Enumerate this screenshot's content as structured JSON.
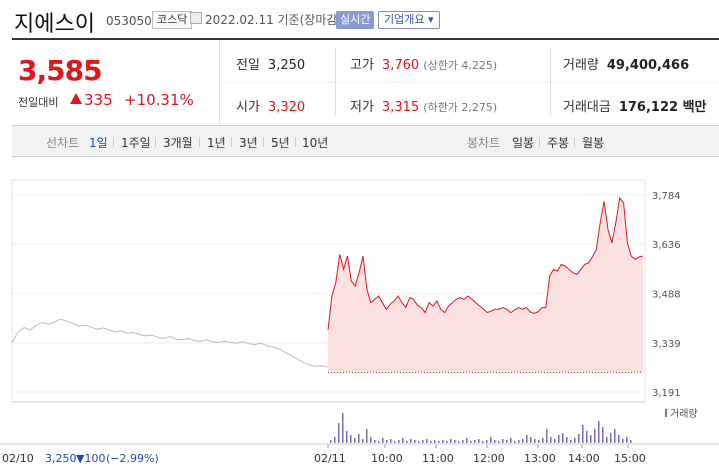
{
  "stock": {
    "name": "지에스이",
    "code": "053050",
    "market": "코스닥",
    "date": "2022.02.11",
    "basis": "기준(장마감)",
    "realtime_label": "실시간",
    "overview_label": "기업개요 ▾",
    "price": "3,585",
    "change_label": "전일대비",
    "change": "335",
    "change_pct": "+10.31%"
  },
  "stats": {
    "prev_label": "전일",
    "prev": "3,250",
    "open_label": "시가",
    "open": "3,320",
    "high_label": "고가",
    "high": "3,760",
    "upper_limit": "(상한가 4,225)",
    "low_label": "저가",
    "low": "3,315",
    "lower_limit": "(하한가 2,275)",
    "volume_label": "거래량",
    "volume": "49,400,466",
    "amount_label": "거래대금",
    "amount": "176,122 백만"
  },
  "periods": {
    "chart_label": "선차트",
    "items": [
      "1일",
      "1주일",
      "3개월",
      "1년",
      "3년",
      "5년",
      "10년"
    ],
    "candle_label": "봉차트",
    "candles": [
      "일봉",
      "주봉",
      "월봉"
    ]
  },
  "colors": {
    "up": "#e3151a",
    "down": "#1a4cb0",
    "prev_line": "#bbbbbb",
    "volume": "#7d6cb5"
  },
  "chart_data": {
    "type": "line",
    "y_ticks": [
      "3,784",
      "3,636",
      "3,488",
      "3,339",
      "3,191"
    ],
    "ylim": [
      3191,
      3784
    ],
    "x_ticks": [
      "02/11",
      "10:00",
      "11:00",
      "12:00",
      "13:00",
      "14:00",
      "15:00"
    ],
    "prev_day_label": "02/10",
    "prev_day_close": "3,250",
    "prev_day_change": "▼100",
    "prev_day_pct": "(−2.99%)",
    "volume_legend": "거래량",
    "prev_series": [
      3339,
      3372,
      3385,
      3378,
      3392,
      3400,
      3395,
      3402,
      3410,
      3404,
      3398,
      3390,
      3392,
      3386,
      3380,
      3384,
      3378,
      3372,
      3375,
      3368,
      3370,
      3364,
      3360,
      3362,
      3356,
      3352,
      3358,
      3350,
      3348,
      3352,
      3346,
      3344,
      3348,
      3342,
      3340,
      3344,
      3340,
      3338,
      3342,
      3336,
      3334,
      3338,
      3330,
      3326,
      3320,
      3310,
      3300,
      3290,
      3280,
      3272,
      3268,
      3270,
      3266
    ],
    "today_series": [
      3378,
      3480,
      3520,
      3605,
      3560,
      3600,
      3525,
      3510,
      3550,
      3600,
      3500,
      3460,
      3470,
      3480,
      3460,
      3440,
      3455,
      3465,
      3480,
      3460,
      3445,
      3475,
      3470,
      3452,
      3445,
      3430,
      3460,
      3450,
      3465,
      3440,
      3430,
      3450,
      3460,
      3470,
      3475,
      3470,
      3480,
      3470,
      3460,
      3450,
      3440,
      3430,
      3435,
      3440,
      3440,
      3445,
      3440,
      3430,
      3438,
      3445,
      3440,
      3445,
      3432,
      3428,
      3432,
      3445,
      3445,
      3540,
      3560,
      3555,
      3575,
      3570,
      3560,
      3550,
      3545,
      3560,
      3575,
      3580,
      3598,
      3620,
      3700,
      3765,
      3680,
      3640,
      3700,
      3775,
      3760,
      3640,
      3600,
      3590,
      3598,
      3600
    ],
    "today_base": 3250
  }
}
